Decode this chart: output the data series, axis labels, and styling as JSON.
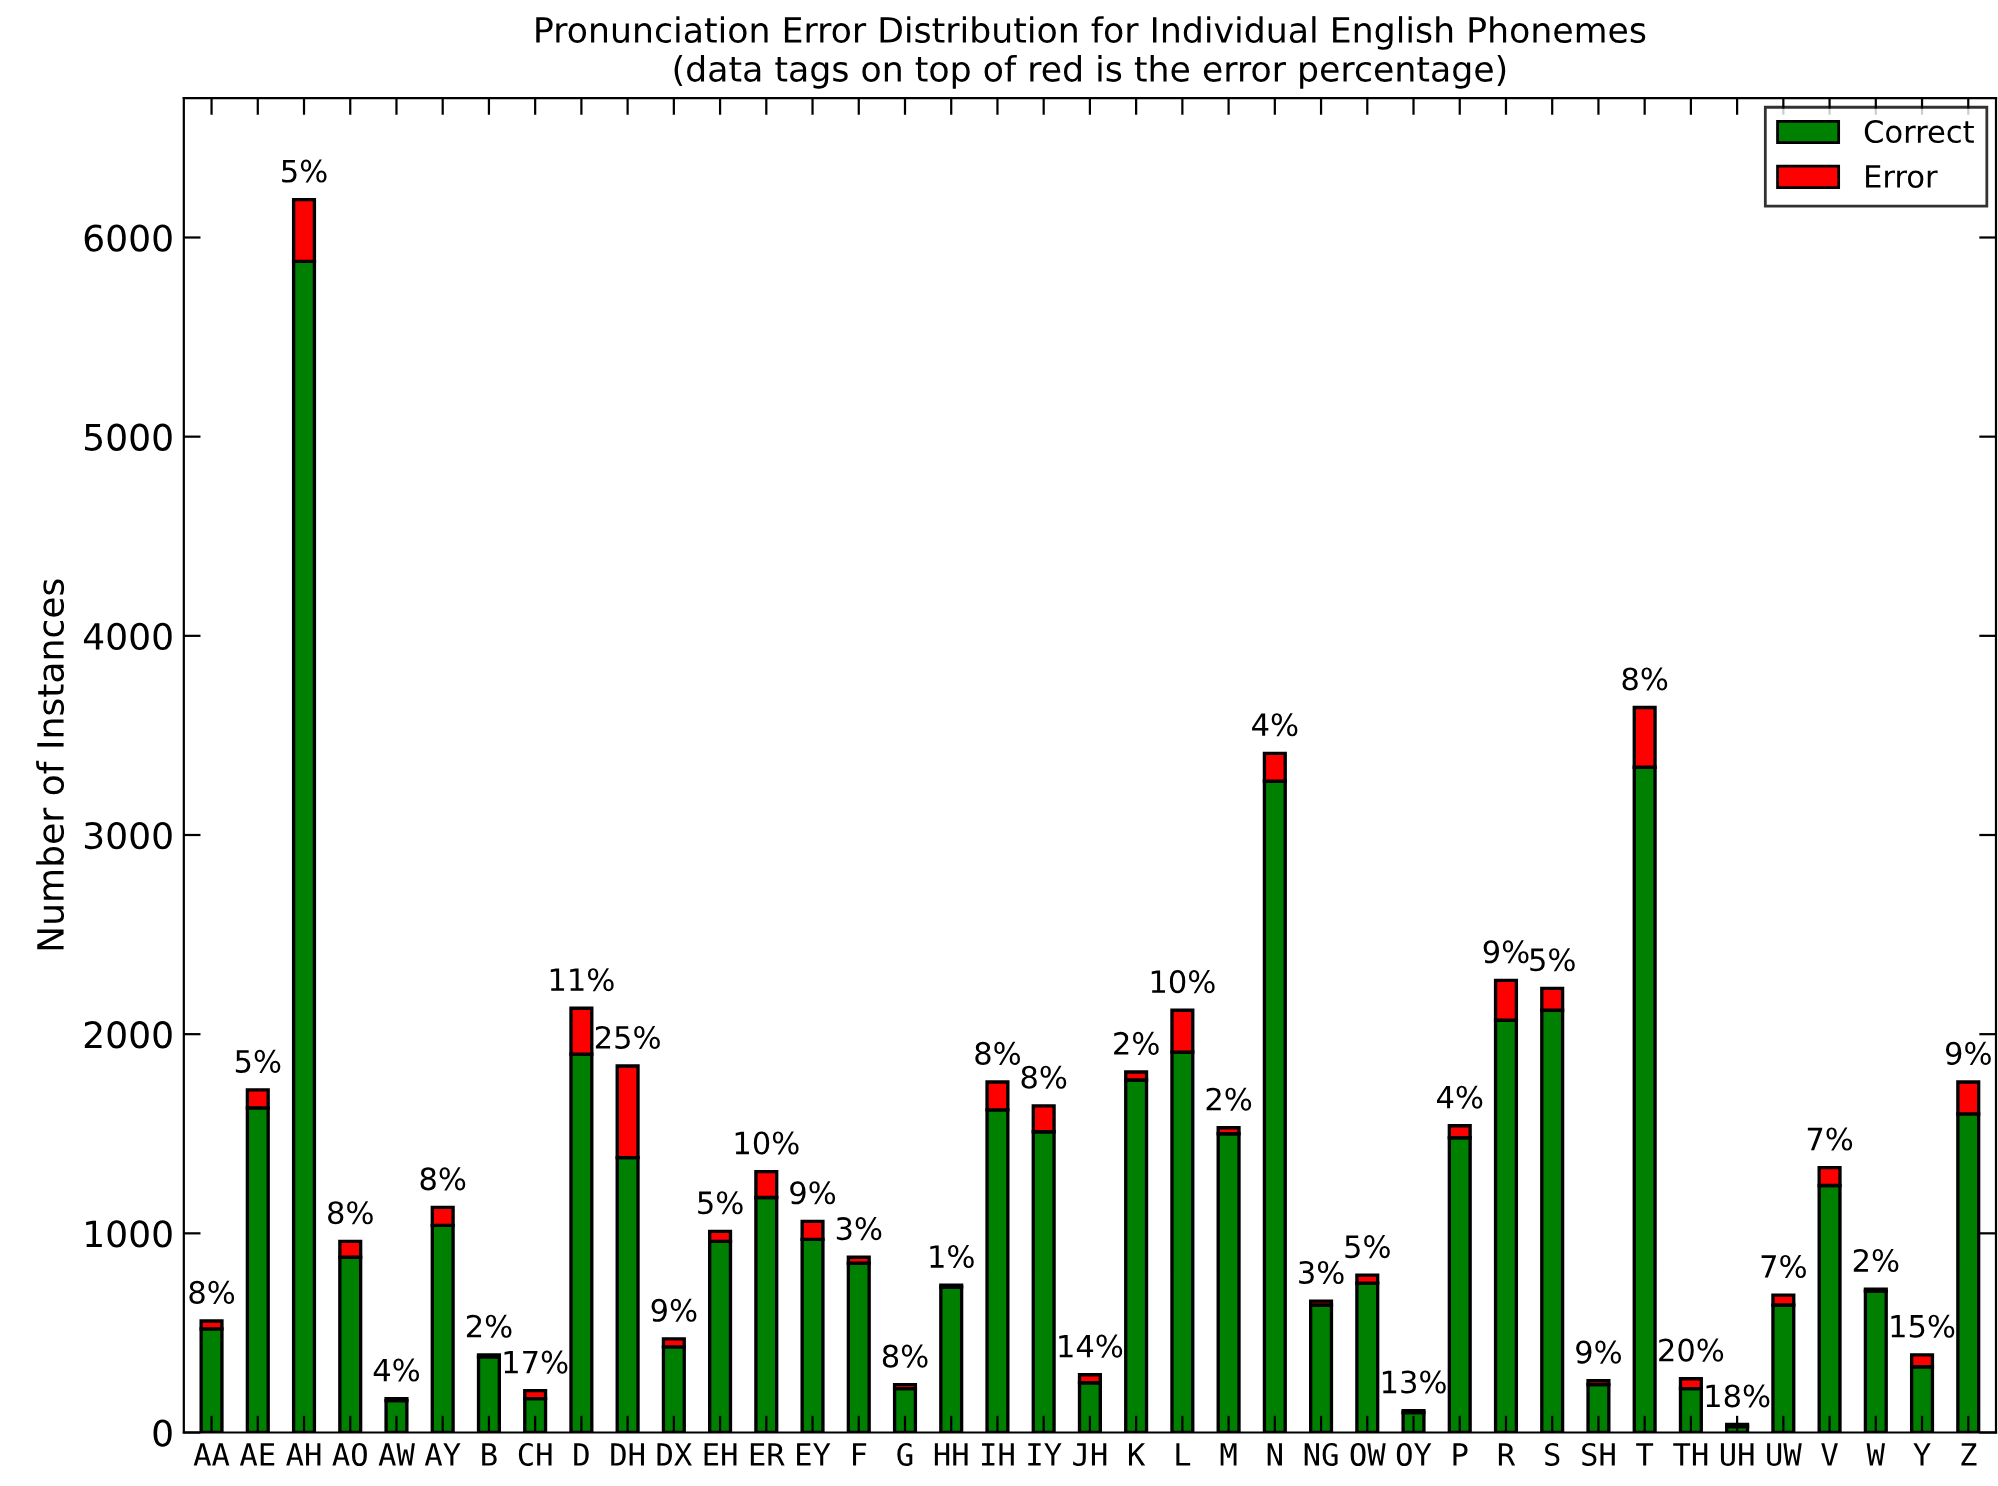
{
  "chart_data": {
    "type": "bar",
    "title": "Pronunciation Error Distribution for Individual English Phonemes\n(data tags on top of red is the error percentage)",
    "ylabel": "Number of Instances",
    "categories": [
      "AA",
      "AE",
      "AH",
      "AO",
      "AW",
      "AY",
      "B",
      "CH",
      "D",
      "DH",
      "DX",
      "EH",
      "ER",
      "EY",
      "F",
      "G",
      "HH",
      "IH",
      "IY",
      "JH",
      "K",
      "L",
      "M",
      "N",
      "NG",
      "OW",
      "OY",
      "P",
      "R",
      "S",
      "SH",
      "T",
      "TH",
      "UH",
      "UW",
      "V",
      "W",
      "Y",
      "Z"
    ],
    "stacked": true,
    "legend": "top right",
    "grid": false,
    "ylim": [
      0,
      6700
    ],
    "yticks": [
      0,
      1000,
      2000,
      3000,
      4000,
      5000,
      6000
    ],
    "series": [
      {
        "name": "Correct",
        "color": "#008000",
        "values": [
          520,
          1630,
          5880,
          880,
          160,
          1040,
          380,
          170,
          1900,
          1380,
          430,
          960,
          1180,
          970,
          850,
          220,
          730,
          1620,
          1510,
          250,
          1770,
          1910,
          1500,
          3270,
          640,
          750,
          100,
          1480,
          2070,
          2120,
          240,
          3340,
          220,
          30,
          640,
          1240,
          710,
          330,
          1600
        ]
      },
      {
        "name": "Error",
        "color": "#ff0000",
        "values": [
          40,
          90,
          310,
          80,
          10,
          90,
          10,
          40,
          230,
          460,
          40,
          50,
          130,
          90,
          30,
          20,
          10,
          140,
          130,
          40,
          40,
          210,
          30,
          140,
          20,
          40,
          10,
          60,
          200,
          110,
          20,
          300,
          50,
          10,
          50,
          90,
          10,
          60,
          160
        ]
      }
    ],
    "annotations": [
      {
        "text": "8%",
        "x": "AA",
        "y": 560
      },
      {
        "text": "5%",
        "x": "AE",
        "y": 1720
      },
      {
        "text": "5%",
        "x": "AH",
        "y": 6190
      },
      {
        "text": "8%",
        "x": "AO",
        "y": 960
      },
      {
        "text": "4%",
        "x": "AW",
        "y": 170
      },
      {
        "text": "8%",
        "x": "AY",
        "y": 1130
      },
      {
        "text": "2%",
        "x": "B",
        "y": 390
      },
      {
        "text": "17%",
        "x": "CH",
        "y": 210
      },
      {
        "text": "11%",
        "x": "D",
        "y": 2130
      },
      {
        "text": "25%",
        "x": "DH",
        "y": 1840
      },
      {
        "text": "9%",
        "x": "DX",
        "y": 470
      },
      {
        "text": "5%",
        "x": "EH",
        "y": 1010
      },
      {
        "text": "10%",
        "x": "ER",
        "y": 1310
      },
      {
        "text": "9%",
        "x": "EY",
        "y": 1060
      },
      {
        "text": "3%",
        "x": "F",
        "y": 880
      },
      {
        "text": "8%",
        "x": "G",
        "y": 240
      },
      {
        "text": "1%",
        "x": "HH",
        "y": 740
      },
      {
        "text": "8%",
        "x": "IH",
        "y": 1760
      },
      {
        "text": "8%",
        "x": "IY",
        "y": 1640
      },
      {
        "text": "14%",
        "x": "JH",
        "y": 290
      },
      {
        "text": "2%",
        "x": "K",
        "y": 1810
      },
      {
        "text": "10%",
        "x": "L",
        "y": 2120
      },
      {
        "text": "2%",
        "x": "M",
        "y": 1530
      },
      {
        "text": "4%",
        "x": "N",
        "y": 3410
      },
      {
        "text": "3%",
        "x": "NG",
        "y": 660
      },
      {
        "text": "5%",
        "x": "OW",
        "y": 790
      },
      {
        "text": "13%",
        "x": "OY",
        "y": 110
      },
      {
        "text": "4%",
        "x": "P",
        "y": 1540
      },
      {
        "text": "9%",
        "x": "R",
        "y": 2270
      },
      {
        "text": "5%",
        "x": "S",
        "y": 2230
      },
      {
        "text": "9%",
        "x": "SH",
        "y": 260
      },
      {
        "text": "8%",
        "x": "T",
        "y": 3640
      },
      {
        "text": "20%",
        "x": "TH",
        "y": 270
      },
      {
        "text": "18%",
        "x": "UH",
        "y": 40
      },
      {
        "text": "7%",
        "x": "UW",
        "y": 690
      },
      {
        "text": "7%",
        "x": "V",
        "y": 1330
      },
      {
        "text": "2%",
        "x": "W",
        "y": 720
      },
      {
        "text": "15%",
        "x": "Y",
        "y": 390
      },
      {
        "text": "9%",
        "x": "Z",
        "y": 1760
      }
    ]
  }
}
